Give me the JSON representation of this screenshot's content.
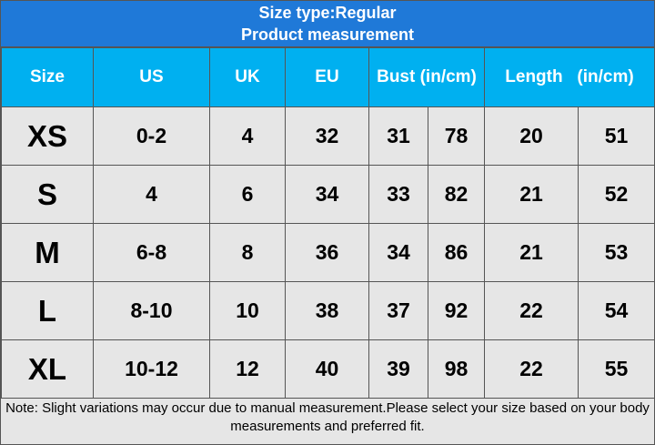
{
  "header": {
    "title": [
      "Size type:Regular",
      "Product measurement"
    ]
  },
  "table": {
    "columns": [
      "Size",
      "US",
      "UK",
      "EU",
      "Bust (in/cm)",
      "Length   (in/cm)"
    ],
    "rows": [
      [
        "XS",
        "0-2",
        "4",
        "32",
        "31",
        "78",
        "20",
        "51"
      ],
      [
        "S",
        "4",
        "6",
        "34",
        "33",
        "82",
        "21",
        "52"
      ],
      [
        "M",
        "6-8",
        "8",
        "36",
        "34",
        "86",
        "21",
        "53"
      ],
      [
        "L",
        "8-10",
        "10",
        "38",
        "37",
        "92",
        "22",
        "54"
      ],
      [
        "XL",
        "10-12",
        "12",
        "40",
        "39",
        "98",
        "22",
        "55"
      ]
    ]
  },
  "note": "Note: Slight variations may occur due to manual measurement.Please select your size based on your body measurements and preferred fit."
}
